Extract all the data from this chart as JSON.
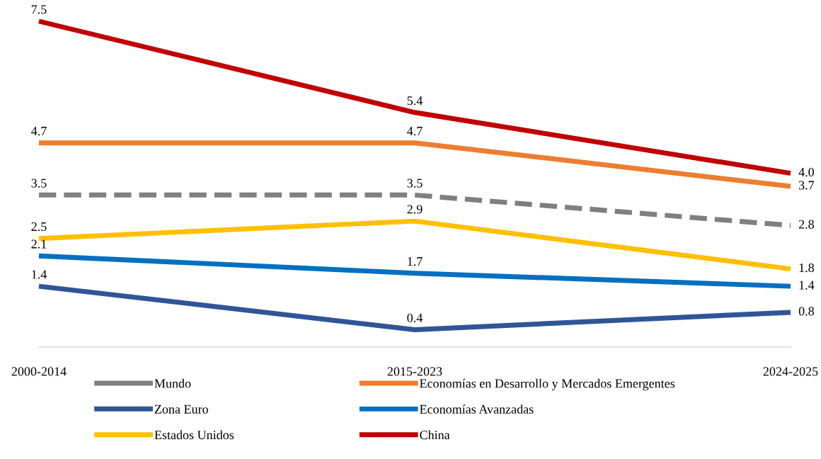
{
  "chart_data": {
    "type": "line",
    "categories": [
      "2000-2014",
      "2015-2023",
      "2024-2025"
    ],
    "legend": "bottom",
    "grid": false,
    "marker": "none",
    "series": [
      {
        "name": "Mundo",
        "color": "#7f7f7f",
        "line_style": "dashed",
        "values": [
          3.5,
          3.5,
          2.8
        ],
        "value_labels": [
          "3.5",
          "3.5",
          "2.8"
        ]
      },
      {
        "name": "Economías en Desarrollo y Mercados Emergentes",
        "color": "#ed7d31",
        "values": [
          4.7,
          4.7,
          3.7
        ],
        "value_labels": [
          "4.7",
          "4.7",
          "3.7"
        ]
      },
      {
        "name": "Zona Euro",
        "color": "#2f5597",
        "values": [
          1.4,
          0.4,
          0.8
        ],
        "value_labels": [
          "1.4",
          "0.4",
          "0.8"
        ]
      },
      {
        "name": "Economías Avanzadas",
        "color": "#0070c0",
        "values": [
          2.1,
          1.7,
          1.4
        ],
        "value_labels": [
          "2.1",
          "1.7",
          "1.4"
        ]
      },
      {
        "name": "Estados Unidos",
        "color": "#ffc000",
        "values": [
          2.5,
          2.9,
          1.8
        ],
        "value_labels": [
          "2.5",
          "2.9",
          "1.8"
        ]
      },
      {
        "name": "China",
        "color": "#c00000",
        "values": [
          7.5,
          5.4,
          4.0
        ],
        "value_labels": [
          "7.5",
          "5.4",
          "4.0"
        ]
      }
    ]
  }
}
